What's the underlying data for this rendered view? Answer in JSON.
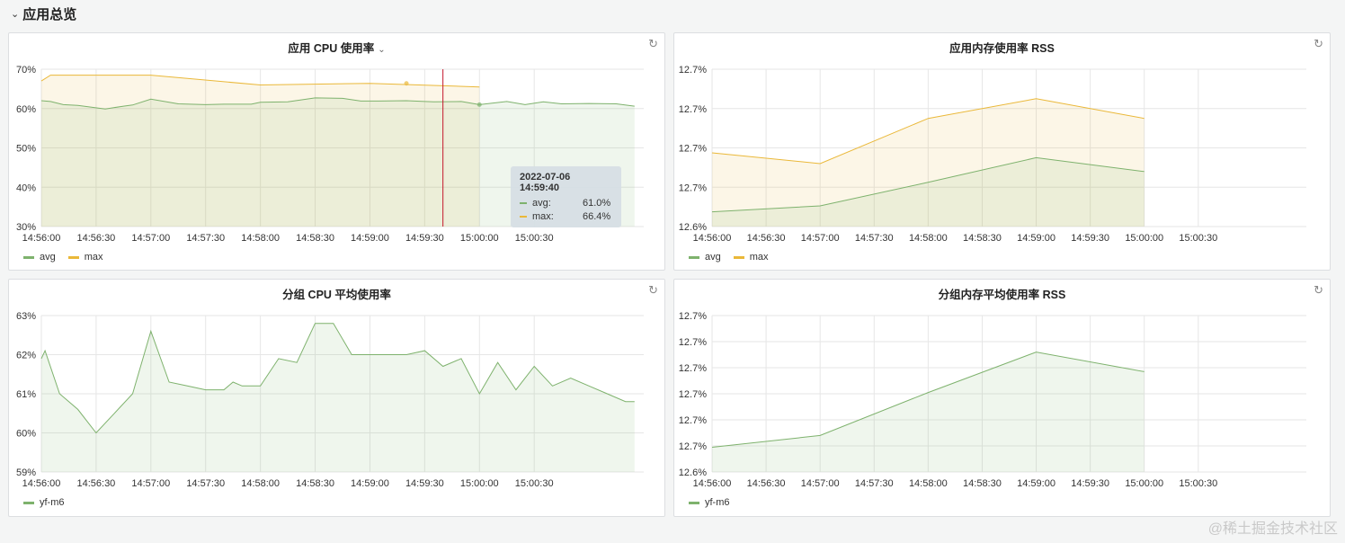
{
  "section": {
    "title": "应用总览",
    "chevron_icon": "chevron-down-icon"
  },
  "colors": {
    "avg": "#7eb26d",
    "max": "#eab839",
    "crosshair": "#c4162a",
    "grid": "#e6e6e6"
  },
  "x_ticks": [
    "14:56:00",
    "14:56:30",
    "14:57:00",
    "14:57:30",
    "14:58:00",
    "14:58:30",
    "14:59:00",
    "14:59:30",
    "15:00:00",
    "15:00:30"
  ],
  "panels": {
    "cpu": {
      "title": "应用 CPU 使用率",
      "legend": [
        "avg",
        "max"
      ],
      "tooltip": {
        "time": "2022-07-06 14:59:40",
        "avg_label": "avg:",
        "avg_value": "61.0%",
        "max_label": "max:",
        "max_value": "66.4%"
      }
    },
    "mem": {
      "title": "应用内存使用率 RSS",
      "legend": [
        "avg",
        "max"
      ]
    },
    "group_cpu": {
      "title": "分组 CPU 平均使用率",
      "legend": [
        "yf-m6"
      ]
    },
    "group_mem": {
      "title": "分组内存平均使用率 RSS",
      "legend": [
        "yf-m6"
      ]
    }
  },
  "chart_data": [
    {
      "type": "area",
      "title": "应用 CPU 使用率",
      "x_unit": "seconds since 14:56:00",
      "ylim": [
        30,
        70
      ],
      "y_tick_labels": [
        "70%",
        "60%",
        "50%",
        "40%",
        "30%"
      ],
      "y_tick_values": [
        70,
        60,
        50,
        40,
        30
      ],
      "series": [
        {
          "name": "avg",
          "x": [
            0,
            5,
            12,
            20,
            35,
            45,
            50,
            60,
            75,
            90,
            100,
            105,
            115,
            120,
            135,
            150,
            165,
            175,
            185,
            200,
            210,
            215,
            230,
            240,
            255,
            265,
            275,
            285,
            300,
            315,
            325
          ],
          "values": [
            62.0,
            61.8,
            61.0,
            60.8,
            59.9,
            60.6,
            60.9,
            62.4,
            61.2,
            61.0,
            61.1,
            61.1,
            61.1,
            61.6,
            61.7,
            62.7,
            62.6,
            61.9,
            61.9,
            62.0,
            61.8,
            61.7,
            61.8,
            61.0,
            61.8,
            61.0,
            61.7,
            61.2,
            61.3,
            61.2,
            60.6
          ]
        },
        {
          "name": "max",
          "x": [
            0,
            5,
            60,
            120,
            180,
            240
          ],
          "values": [
            67.0,
            68.5,
            68.5,
            66.0,
            66.4,
            65.5
          ]
        }
      ],
      "grid": true,
      "legend_position": "bottom-left"
    },
    {
      "type": "area",
      "title": "应用内存使用率 RSS",
      "x_unit": "seconds since 14:56:00",
      "y_tick_labels": [
        "12.7%",
        "12.7%",
        "12.7%",
        "12.7%",
        "12.6%"
      ],
      "series": [
        {
          "name": "avg",
          "x": [
            0,
            60,
            120,
            180,
            240
          ],
          "values": [
            12.6475,
            12.6505,
            12.6625,
            12.675,
            12.668
          ]
        },
        {
          "name": "max",
          "x": [
            0,
            60,
            120,
            180,
            240
          ],
          "values": [
            12.6775,
            12.672,
            12.695,
            12.705,
            12.695
          ]
        }
      ],
      "grid": true,
      "legend_position": "bottom-left"
    },
    {
      "type": "area",
      "title": "分组 CPU 平均使用率",
      "x_unit": "seconds since 14:56:00",
      "ylim": [
        59,
        63
      ],
      "y_tick_labels": [
        "63%",
        "62%",
        "61%",
        "60%",
        "59%"
      ],
      "y_tick_values": [
        63,
        62,
        61,
        60,
        59
      ],
      "series": [
        {
          "name": "yf-m6",
          "x": [
            0,
            2,
            10,
            20,
            30,
            40,
            50,
            60,
            70,
            80,
            90,
            100,
            105,
            110,
            120,
            130,
            140,
            150,
            160,
            170,
            180,
            190,
            200,
            210,
            220,
            230,
            240,
            250,
            260,
            270,
            280,
            290,
            300,
            310,
            320,
            325
          ],
          "values": [
            61.9,
            62.1,
            61.0,
            60.6,
            60.0,
            60.5,
            61.0,
            62.6,
            61.3,
            61.2,
            61.1,
            61.1,
            61.3,
            61.2,
            61.2,
            61.9,
            61.8,
            62.8,
            62.8,
            62.0,
            62.0,
            62.0,
            62.0,
            62.1,
            61.7,
            61.9,
            61.0,
            61.8,
            61.1,
            61.7,
            61.2,
            61.4,
            61.2,
            61.0,
            60.8,
            60.8
          ]
        }
      ],
      "grid": true,
      "legend_position": "bottom-left"
    },
    {
      "type": "area",
      "title": "分组内存平均使用率 RSS",
      "x_unit": "seconds since 14:56:00",
      "y_tick_labels": [
        "12.7%",
        "12.7%",
        "12.7%",
        "12.7%",
        "12.7%",
        "12.7%",
        "12.6%"
      ],
      "series": [
        {
          "name": "yf-m6",
          "x": [
            0,
            60,
            120,
            180,
            240
          ],
          "values": [
            12.6695,
            12.674,
            12.6905,
            12.706,
            12.6985
          ]
        }
      ],
      "grid": true,
      "legend_position": "bottom-left"
    }
  ]
}
